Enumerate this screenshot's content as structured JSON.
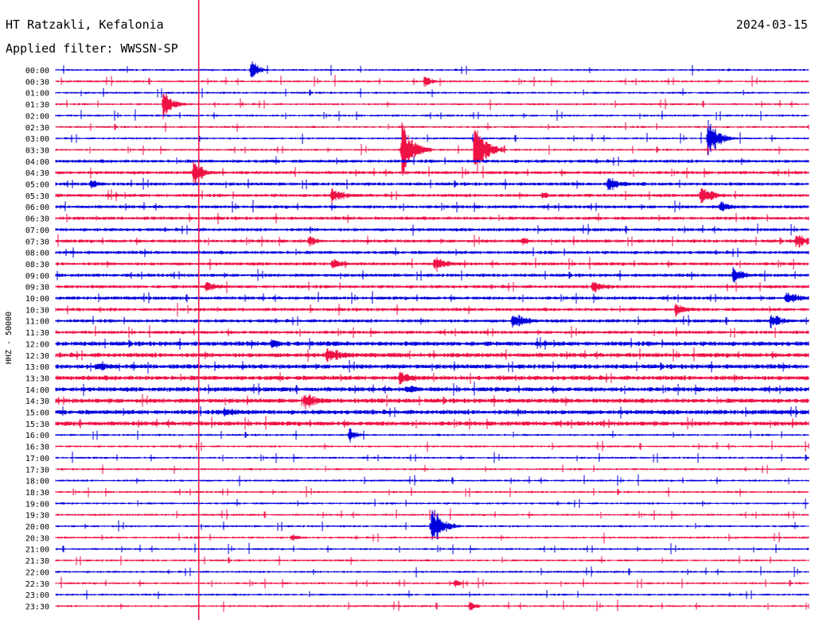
{
  "header": {
    "station": "HT Ratzakli, Kefalonia",
    "date": "2024-03-15",
    "filter": "Applied filter: WWSSN-SP"
  },
  "chart_data": {
    "type": "line",
    "ylabel": "HHZ - 50000",
    "rows": [
      "00:00",
      "00:30",
      "01:00",
      "01:30",
      "02:00",
      "02:30",
      "03:00",
      "03:30",
      "04:00",
      "04:30",
      "05:00",
      "05:30",
      "06:00",
      "06:30",
      "07:00",
      "07:30",
      "08:00",
      "08:30",
      "09:00",
      "09:30",
      "10:00",
      "10:30",
      "11:00",
      "11:30",
      "12:00",
      "12:30",
      "13:00",
      "13:30",
      "14:00",
      "14:30",
      "15:00",
      "15:30",
      "16:00",
      "16:30",
      "17:00",
      "17:30",
      "18:00",
      "18:30",
      "19:00",
      "19:30",
      "20:00",
      "20:30",
      "21:00",
      "21:30",
      "22:00",
      "22:30",
      "23:00",
      "23:30"
    ],
    "colors": [
      "#0000dd",
      "#ee1144"
    ],
    "events": [
      {
        "row": 0,
        "minute": 7.8,
        "amp": 18,
        "dur": 0.8
      },
      {
        "row": 0,
        "minute": 26.8,
        "amp": 3,
        "dur": 0.3
      },
      {
        "row": 1,
        "minute": 14.7,
        "amp": 12,
        "dur": 0.7
      },
      {
        "row": 3,
        "minute": 4.3,
        "amp": 25,
        "dur": 1.0
      },
      {
        "row": 6,
        "minute": 26.0,
        "amp": 28,
        "dur": 1.2
      },
      {
        "row": 7,
        "minute": 13.8,
        "amp": 45,
        "dur": 1.2
      },
      {
        "row": 7,
        "minute": 16.7,
        "amp": 45,
        "dur": 1.2
      },
      {
        "row": 9,
        "minute": 5.5,
        "amp": 22,
        "dur": 1.0
      },
      {
        "row": 10,
        "minute": 1.4,
        "amp": 8,
        "dur": 1.2
      },
      {
        "row": 10,
        "minute": 22.0,
        "amp": 14,
        "dur": 1.4
      },
      {
        "row": 11,
        "minute": 11.0,
        "amp": 12,
        "dur": 1.6
      },
      {
        "row": 11,
        "minute": 19.4,
        "amp": 7,
        "dur": 0.8
      },
      {
        "row": 11,
        "minute": 25.7,
        "amp": 16,
        "dur": 1.4
      },
      {
        "row": 12,
        "minute": 26.5,
        "amp": 10,
        "dur": 1.2
      },
      {
        "row": 15,
        "minute": 10.1,
        "amp": 10,
        "dur": 0.9
      },
      {
        "row": 15,
        "minute": 18.6,
        "amp": 8,
        "dur": 0.8
      },
      {
        "row": 15,
        "minute": 29.5,
        "amp": 14,
        "dur": 1.4
      },
      {
        "row": 17,
        "minute": 11.0,
        "amp": 9,
        "dur": 1.4
      },
      {
        "row": 17,
        "minute": 15.1,
        "amp": 14,
        "dur": 1.6
      },
      {
        "row": 18,
        "minute": 27.0,
        "amp": 14,
        "dur": 1.2
      },
      {
        "row": 19,
        "minute": 6.0,
        "amp": 9,
        "dur": 1.4
      },
      {
        "row": 19,
        "minute": 21.4,
        "amp": 10,
        "dur": 1.8
      },
      {
        "row": 20,
        "minute": 29.1,
        "amp": 12,
        "dur": 1.6
      },
      {
        "row": 21,
        "minute": 24.7,
        "amp": 10,
        "dur": 1.6
      },
      {
        "row": 22,
        "minute": 18.2,
        "amp": 14,
        "dur": 1.6
      },
      {
        "row": 22,
        "minute": 28.5,
        "amp": 12,
        "dur": 1.4
      },
      {
        "row": 24,
        "minute": 8.6,
        "amp": 9,
        "dur": 1.2
      },
      {
        "row": 25,
        "minute": 10.8,
        "amp": 13,
        "dur": 2.0
      },
      {
        "row": 26,
        "minute": 1.6,
        "amp": 8,
        "dur": 2.0
      },
      {
        "row": 27,
        "minute": 13.7,
        "amp": 10,
        "dur": 1.6
      },
      {
        "row": 28,
        "minute": 14.0,
        "amp": 9,
        "dur": 1.2
      },
      {
        "row": 29,
        "minute": 9.9,
        "amp": 14,
        "dur": 1.6
      },
      {
        "row": 30,
        "minute": 6.7,
        "amp": 10,
        "dur": 1.6
      },
      {
        "row": 32,
        "minute": 11.7,
        "amp": 12,
        "dur": 0.8
      },
      {
        "row": 40,
        "minute": 15.0,
        "amp": 30,
        "dur": 1.2
      },
      {
        "row": 41,
        "minute": 9.4,
        "amp": 8,
        "dur": 0.8
      },
      {
        "row": 45,
        "minute": 15.9,
        "amp": 8,
        "dur": 0.6
      },
      {
        "row": 47,
        "minute": 16.5,
        "amp": 10,
        "dur": 0.7
      }
    ],
    "marker_minute": 5.7
  }
}
